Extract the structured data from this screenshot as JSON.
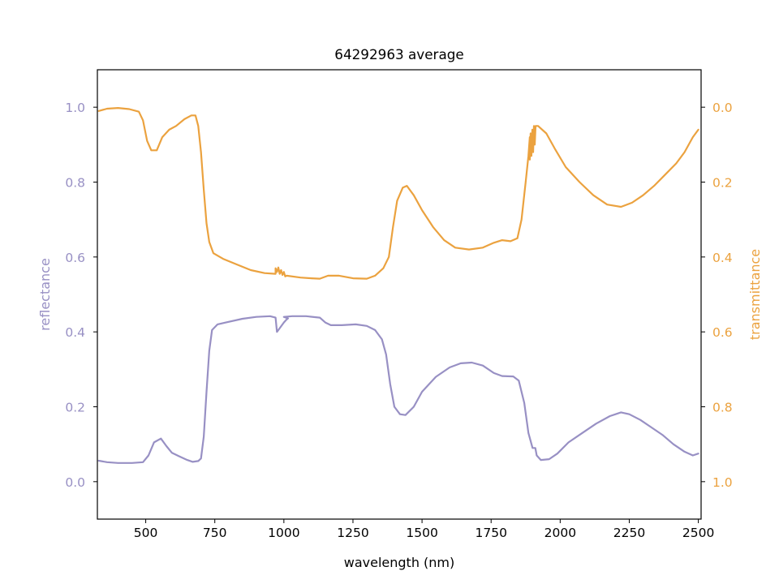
{
  "chart_data": {
    "type": "line",
    "title": "64292963 average",
    "xlabel": "wavelength (nm)",
    "xlim": [
      325,
      2510
    ],
    "x_ticks": [
      500,
      750,
      1000,
      1250,
      1500,
      1750,
      2000,
      2250,
      2500
    ],
    "grid": false,
    "y_left": {
      "label": "reflectance",
      "lim": [
        -0.1,
        1.1
      ],
      "ticks": [
        "0.0",
        "0.2",
        "0.4",
        "0.6",
        "0.8",
        "1.0"
      ],
      "color": "#9890c4"
    },
    "y_right": {
      "label": "transmittance",
      "lim": [
        1.1,
        -0.1
      ],
      "inverted": true,
      "ticks": [
        "0.0",
        "0.2",
        "0.4",
        "0.6",
        "0.8",
        "1.0"
      ],
      "color": "#eba23f"
    },
    "series": [
      {
        "axis": "left",
        "color": "#9890c4",
        "points": [
          [
            330,
            0.056
          ],
          [
            360,
            0.052
          ],
          [
            400,
            0.05
          ],
          [
            450,
            0.05
          ],
          [
            490,
            0.052
          ],
          [
            510,
            0.07
          ],
          [
            530,
            0.105
          ],
          [
            555,
            0.115
          ],
          [
            575,
            0.095
          ],
          [
            595,
            0.077
          ],
          [
            620,
            0.068
          ],
          [
            650,
            0.058
          ],
          [
            670,
            0.053
          ],
          [
            690,
            0.055
          ],
          [
            700,
            0.062
          ],
          [
            710,
            0.12
          ],
          [
            720,
            0.24
          ],
          [
            730,
            0.35
          ],
          [
            740,
            0.405
          ],
          [
            760,
            0.42
          ],
          [
            790,
            0.425
          ],
          [
            850,
            0.435
          ],
          [
            900,
            0.44
          ],
          [
            950,
            0.442
          ],
          [
            970,
            0.438
          ],
          [
            975,
            0.4
          ],
          [
            985,
            0.41
          ],
          [
            1000,
            0.425
          ],
          [
            1010,
            0.433
          ],
          [
            1015,
            0.436
          ],
          [
            1000,
            0.44
          ],
          [
            1030,
            0.442
          ],
          [
            1080,
            0.442
          ],
          [
            1130,
            0.438
          ],
          [
            1150,
            0.425
          ],
          [
            1170,
            0.418
          ],
          [
            1210,
            0.418
          ],
          [
            1260,
            0.42
          ],
          [
            1300,
            0.416
          ],
          [
            1330,
            0.405
          ],
          [
            1355,
            0.38
          ],
          [
            1370,
            0.34
          ],
          [
            1385,
            0.26
          ],
          [
            1400,
            0.2
          ],
          [
            1420,
            0.18
          ],
          [
            1440,
            0.178
          ],
          [
            1470,
            0.2
          ],
          [
            1500,
            0.24
          ],
          [
            1550,
            0.28
          ],
          [
            1600,
            0.305
          ],
          [
            1640,
            0.316
          ],
          [
            1680,
            0.318
          ],
          [
            1720,
            0.31
          ],
          [
            1760,
            0.29
          ],
          [
            1790,
            0.282
          ],
          [
            1830,
            0.281
          ],
          [
            1850,
            0.27
          ],
          [
            1870,
            0.21
          ],
          [
            1885,
            0.13
          ],
          [
            1900,
            0.09
          ],
          [
            1910,
            0.09
          ],
          [
            1915,
            0.07
          ],
          [
            1930,
            0.058
          ],
          [
            1960,
            0.06
          ],
          [
            1990,
            0.075
          ],
          [
            2030,
            0.105
          ],
          [
            2080,
            0.13
          ],
          [
            2130,
            0.155
          ],
          [
            2180,
            0.175
          ],
          [
            2220,
            0.185
          ],
          [
            2250,
            0.18
          ],
          [
            2290,
            0.165
          ],
          [
            2330,
            0.145
          ],
          [
            2370,
            0.125
          ],
          [
            2410,
            0.1
          ],
          [
            2450,
            0.08
          ],
          [
            2480,
            0.07
          ],
          [
            2500,
            0.075
          ]
        ]
      },
      {
        "axis": "right",
        "color": "#eba23f",
        "points": [
          [
            330,
            0.01
          ],
          [
            360,
            0.004
          ],
          [
            400,
            0.002
          ],
          [
            440,
            0.005
          ],
          [
            475,
            0.012
          ],
          [
            490,
            0.035
          ],
          [
            505,
            0.09
          ],
          [
            520,
            0.115
          ],
          [
            540,
            0.115
          ],
          [
            560,
            0.08
          ],
          [
            585,
            0.06
          ],
          [
            610,
            0.05
          ],
          [
            640,
            0.032
          ],
          [
            665,
            0.022
          ],
          [
            680,
            0.022
          ],
          [
            690,
            0.05
          ],
          [
            700,
            0.12
          ],
          [
            710,
            0.22
          ],
          [
            720,
            0.31
          ],
          [
            730,
            0.36
          ],
          [
            745,
            0.39
          ],
          [
            780,
            0.405
          ],
          [
            830,
            0.42
          ],
          [
            880,
            0.435
          ],
          [
            930,
            0.443
          ],
          [
            970,
            0.445
          ],
          [
            970,
            0.43
          ],
          [
            975,
            0.44
          ],
          [
            980,
            0.428
          ],
          [
            985,
            0.445
          ],
          [
            990,
            0.435
          ],
          [
            995,
            0.448
          ],
          [
            1000,
            0.44
          ],
          [
            1005,
            0.452
          ],
          [
            1010,
            0.45
          ],
          [
            1060,
            0.455
          ],
          [
            1100,
            0.457
          ],
          [
            1130,
            0.458
          ],
          [
            1160,
            0.45
          ],
          [
            1200,
            0.45
          ],
          [
            1250,
            0.457
          ],
          [
            1300,
            0.458
          ],
          [
            1330,
            0.45
          ],
          [
            1360,
            0.43
          ],
          [
            1380,
            0.4
          ],
          [
            1395,
            0.32
          ],
          [
            1410,
            0.25
          ],
          [
            1430,
            0.215
          ],
          [
            1445,
            0.21
          ],
          [
            1470,
            0.235
          ],
          [
            1500,
            0.275
          ],
          [
            1540,
            0.32
          ],
          [
            1580,
            0.355
          ],
          [
            1620,
            0.375
          ],
          [
            1670,
            0.38
          ],
          [
            1720,
            0.375
          ],
          [
            1760,
            0.362
          ],
          [
            1790,
            0.355
          ],
          [
            1820,
            0.358
          ],
          [
            1845,
            0.35
          ],
          [
            1860,
            0.3
          ],
          [
            1875,
            0.2
          ],
          [
            1885,
            0.13
          ],
          [
            1890,
            0.08
          ],
          [
            1890,
            0.14
          ],
          [
            1893,
            0.07
          ],
          [
            1896,
            0.13
          ],
          [
            1899,
            0.06
          ],
          [
            1902,
            0.12
          ],
          [
            1905,
            0.05
          ],
          [
            1908,
            0.1
          ],
          [
            1911,
            0.05
          ],
          [
            1920,
            0.05
          ],
          [
            1950,
            0.07
          ],
          [
            1980,
            0.11
          ],
          [
            2020,
            0.16
          ],
          [
            2070,
            0.2
          ],
          [
            2120,
            0.235
          ],
          [
            2170,
            0.26
          ],
          [
            2220,
            0.266
          ],
          [
            2260,
            0.255
          ],
          [
            2300,
            0.235
          ],
          [
            2340,
            0.21
          ],
          [
            2380,
            0.18
          ],
          [
            2420,
            0.15
          ],
          [
            2450,
            0.12
          ],
          [
            2480,
            0.08
          ],
          [
            2500,
            0.06
          ]
        ]
      }
    ]
  }
}
